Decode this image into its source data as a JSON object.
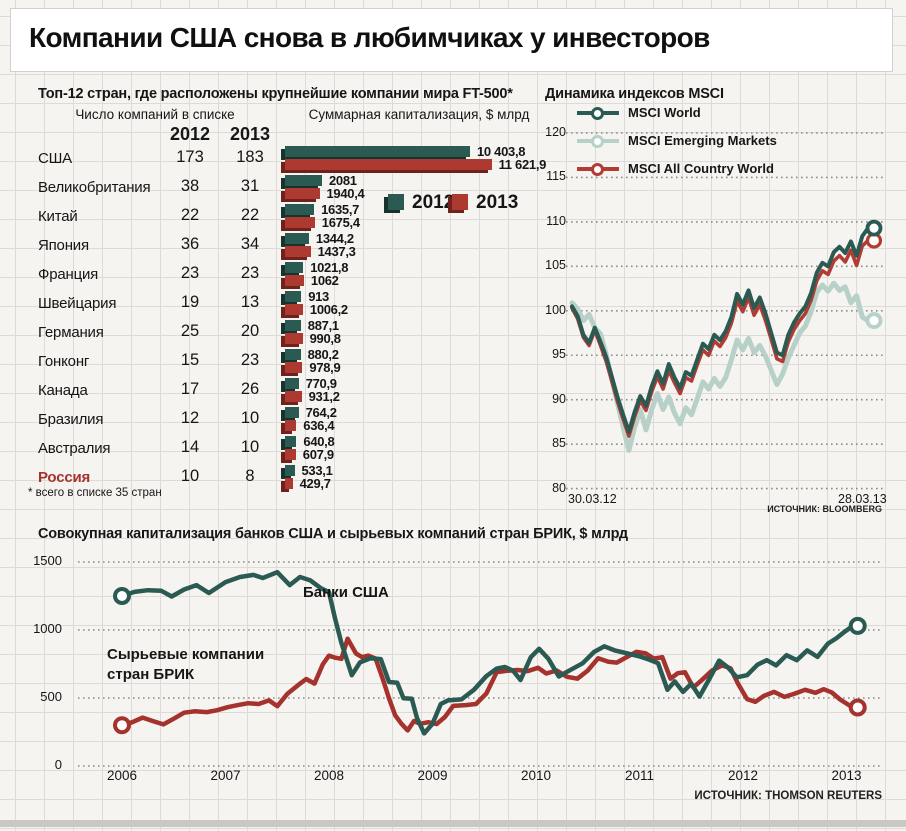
{
  "title": "Компании США снова в любимчиках у инвесторов",
  "table": {
    "subtitle": "Топ-12 стран, где расположены крупнейшие компании мира FT-500*",
    "count_header": "Число компаний в списке",
    "cap_header": "Суммарная капитализация, $ млрд",
    "years": [
      "2012",
      "2013"
    ],
    "legend": [
      "2012",
      "2013"
    ],
    "footnote": "* всего в списке 35 стран",
    "colors": {
      "y2012": "#2a5a52",
      "y2013": "#ad3a31",
      "highlight_text": "#a4342c"
    }
  },
  "msci": {
    "title": "Динамика индексов MSCI",
    "x_start": "30.03.12",
    "x_end": "28.03.13",
    "source": "ИСТОЧНИК: BLOOMBERG",
    "y_ticks": [
      120,
      115,
      110,
      105,
      100,
      95,
      90,
      85,
      80
    ]
  },
  "brik": {
    "title": "Совокупная капитализация банков США и сырьевых компаний стран БРИК, $ млрд",
    "label_banks": "Банки США",
    "label_brik_line1": "Сырьевые компании",
    "label_brik_line2": "стран БРИК",
    "source": "ИСТОЧНИК: THOMSON REUTERS",
    "y_ticks": [
      1500,
      1000,
      500,
      0
    ],
    "x_ticks": [
      2006,
      2007,
      2008,
      2009,
      2010,
      2011,
      2012,
      2013
    ]
  },
  "chart_data": [
    {
      "type": "bar",
      "title": "Топ-12 стран, где расположены крупнейшие компании мира FT-500*",
      "value_units": "$ млрд",
      "series_names": [
        "2012",
        "2013"
      ],
      "rows": [
        {
          "country": "США",
          "n2012": "173",
          "n2013": "183",
          "v2012": 10403.8,
          "v2013": 11621.9,
          "l2012": "10 403,8",
          "l2013": "11 621,9",
          "highlight": false
        },
        {
          "country": "Великобритания",
          "n2012": "38",
          "n2013": "31",
          "v2012": 2081,
          "v2013": 1940.4,
          "l2012": "2081",
          "l2013": "1940,4",
          "highlight": false
        },
        {
          "country": "Китай",
          "n2012": "22",
          "n2013": "22",
          "v2012": 1635.7,
          "v2013": 1675.4,
          "l2012": "1635,7",
          "l2013": "1675,4",
          "highlight": false
        },
        {
          "country": "Япония",
          "n2012": "36",
          "n2013": "34",
          "v2012": 1344.2,
          "v2013": 1437.3,
          "l2012": "1344,2",
          "l2013": "1437,3",
          "highlight": false
        },
        {
          "country": "Франция",
          "n2012": "23",
          "n2013": "23",
          "v2012": 1021.8,
          "v2013": 1062,
          "l2012": "1021,8",
          "l2013": "1062",
          "highlight": false
        },
        {
          "country": "Швейцария",
          "n2012": "19",
          "n2013": "13",
          "v2012": 913,
          "v2013": 1006.2,
          "l2012": "913",
          "l2013": "1006,2",
          "highlight": false
        },
        {
          "country": "Германия",
          "n2012": "25",
          "n2013": "20",
          "v2012": 887.1,
          "v2013": 990.8,
          "l2012": "887,1",
          "l2013": "990,8",
          "highlight": false
        },
        {
          "country": "Гонконг",
          "n2012": "15",
          "n2013": "23",
          "v2012": 880.2,
          "v2013": 978.9,
          "l2012": "880,2",
          "l2013": "978,9",
          "highlight": false
        },
        {
          "country": "Канада",
          "n2012": "17",
          "n2013": "26",
          "v2012": 770.9,
          "v2013": 931.2,
          "l2012": "770,9",
          "l2013": "931,2",
          "highlight": false
        },
        {
          "country": "Бразилия",
          "n2012": "12",
          "n2013": "10",
          "v2012": 764.2,
          "v2013": 636.4,
          "l2012": "764,2",
          "l2013": "636,4",
          "highlight": false
        },
        {
          "country": "Австралия",
          "n2012": "14",
          "n2013": "10",
          "v2012": 640.8,
          "v2013": 607.9,
          "l2012": "640,8",
          "l2013": "607,9",
          "highlight": false
        },
        {
          "country": "Россия",
          "n2012": "10",
          "n2013": "8",
          "v2012": 533.1,
          "v2013": 429.7,
          "l2012": "533,1",
          "l2013": "429,7",
          "highlight": true
        }
      ]
    },
    {
      "type": "line",
      "title": "Динамика индексов MSCI",
      "xlabel": "",
      "ylabel": "",
      "x_range": [
        "30.03.12",
        "28.03.13"
      ],
      "ylim": [
        80,
        120
      ],
      "grid": "dotted-horizontal",
      "legend_position": "top-left",
      "series": [
        {
          "name": "MSCI Emerging Markets",
          "color": "#b7d0c8",
          "width": 5,
          "values": [
            100.9,
            100.2,
            98.9,
            99.6,
            98.1,
            97.4,
            95.1,
            92.3,
            89.6,
            86.9,
            84.3,
            86.9,
            88.9,
            86.6,
            88.9,
            90.7,
            88.9,
            90.3,
            88.5,
            87.3,
            89.1,
            88.3,
            90.1,
            92.0,
            91.2,
            92.4,
            91.5,
            92.5,
            94.5,
            96.7,
            95.6,
            96.9,
            95.3,
            96.1,
            94.9,
            93.3,
            91.7,
            92.9,
            94.7,
            96.1,
            97.5,
            98.3,
            99.9,
            102.1,
            102.9,
            102.2,
            103.1,
            102.3,
            102.7,
            100.9,
            101.7,
            99.3,
            98.9
          ]
        },
        {
          "name": "MSCI All Country World",
          "color": "#b23b33",
          "width": 3.6,
          "values": [
            100.3,
            99.1,
            97.0,
            96.1,
            97.8,
            96.1,
            94.3,
            92.1,
            89.8,
            87.8,
            85.9,
            88.1,
            89.9,
            88.8,
            90.9,
            92.6,
            91.2,
            93.3,
            91.9,
            90.7,
            92.5,
            92.1,
            93.9,
            95.6,
            95.0,
            96.6,
            96.0,
            97.0,
            98.6,
            101.1,
            99.9,
            101.5,
            99.5,
            100.7,
            98.9,
            96.8,
            94.6,
            94.3,
            96.5,
            97.9,
            98.9,
            99.7,
            101.2,
            103.4,
            104.5,
            104.1,
            105.6,
            106.2,
            105.5,
            106.8,
            105.1,
            107.3,
            107.9
          ]
        },
        {
          "name": "MSCI World",
          "color": "#2a5a52",
          "width": 4,
          "values": [
            100.5,
            99.4,
            97.3,
            96.4,
            98.1,
            96.5,
            94.8,
            92.6,
            90.3,
            88.3,
            86.4,
            88.6,
            90.4,
            89.3,
            91.5,
            93.2,
            91.8,
            94.0,
            92.5,
            91.3,
            93.1,
            92.7,
            94.5,
            96.3,
            95.7,
            97.3,
            96.7,
            97.7,
            99.3,
            101.9,
            100.7,
            102.3,
            100.3,
            101.5,
            99.7,
            97.5,
            95.3,
            95.0,
            97.3,
            98.7,
            99.7,
            100.5,
            102.0,
            104.3,
            105.4,
            105.0,
            106.6,
            107.2,
            106.5,
            107.8,
            106.2,
            108.4,
            109.3
          ]
        }
      ],
      "legend_order": [
        "MSCI World",
        "MSCI Emerging Markets",
        "MSCI All Country World"
      ]
    },
    {
      "type": "line",
      "title": "Совокупная капитализация банков США и сырьевых компаний стран БРИК, $ млрд",
      "ylim": [
        0,
        1500
      ],
      "x_ticks": [
        2006,
        2007,
        2008,
        2009,
        2010,
        2011,
        2012,
        2013
      ],
      "grid": "dotted-horizontal",
      "series": [
        {
          "name": "Сырьевые компании стран БРИК",
          "color": "#a5322c",
          "width": 4.5,
          "points": [
            [
              2006.0,
              300
            ],
            [
              2006.1,
              322
            ],
            [
              2006.2,
              356
            ],
            [
              2006.3,
              330
            ],
            [
              2006.4,
              306
            ],
            [
              2006.5,
              348
            ],
            [
              2006.6,
              392
            ],
            [
              2006.7,
              402
            ],
            [
              2006.82,
              396
            ],
            [
              2006.92,
              410
            ],
            [
              2007.02,
              432
            ],
            [
              2007.12,
              448
            ],
            [
              2007.22,
              462
            ],
            [
              2007.32,
              456
            ],
            [
              2007.42,
              482
            ],
            [
              2007.5,
              440
            ],
            [
              2007.6,
              532
            ],
            [
              2007.7,
              594
            ],
            [
              2007.78,
              640
            ],
            [
              2007.86,
              606
            ],
            [
              2007.94,
              748
            ],
            [
              2008.0,
              812
            ],
            [
              2008.06,
              796
            ],
            [
              2008.12,
              788
            ],
            [
              2008.18,
              936
            ],
            [
              2008.26,
              828
            ],
            [
              2008.32,
              800
            ],
            [
              2008.38,
              812
            ],
            [
              2008.45,
              790
            ],
            [
              2008.52,
              640
            ],
            [
              2008.58,
              498
            ],
            [
              2008.64,
              372
            ],
            [
              2008.7,
              310
            ],
            [
              2008.76,
              262
            ],
            [
              2008.82,
              330
            ],
            [
              2008.88,
              310
            ],
            [
              2008.96,
              322
            ],
            [
              2009.04,
              308
            ],
            [
              2009.12,
              360
            ],
            [
              2009.2,
              442
            ],
            [
              2009.32,
              448
            ],
            [
              2009.42,
              456
            ],
            [
              2009.52,
              532
            ],
            [
              2009.62,
              690
            ],
            [
              2009.72,
              700
            ],
            [
              2009.82,
              706
            ],
            [
              2009.92,
              698
            ],
            [
              2010.02,
              722
            ],
            [
              2010.1,
              680
            ],
            [
              2010.2,
              702
            ],
            [
              2010.3,
              656
            ],
            [
              2010.4,
              642
            ],
            [
              2010.5,
              702
            ],
            [
              2010.6,
              792
            ],
            [
              2010.7,
              766
            ],
            [
              2010.78,
              760
            ],
            [
              2010.88,
              802
            ],
            [
              2010.97,
              840
            ],
            [
              2011.06,
              828
            ],
            [
              2011.14,
              790
            ],
            [
              2011.22,
              800
            ],
            [
              2011.3,
              642
            ],
            [
              2011.37,
              682
            ],
            [
              2011.44,
              690
            ],
            [
              2011.52,
              578
            ],
            [
              2011.6,
              630
            ],
            [
              2011.7,
              702
            ],
            [
              2011.8,
              740
            ],
            [
              2011.88,
              718
            ],
            [
              2011.95,
              608
            ],
            [
              2012.04,
              492
            ],
            [
              2012.12,
              472
            ],
            [
              2012.2,
              515
            ],
            [
              2012.3,
              545
            ],
            [
              2012.4,
              508
            ],
            [
              2012.5,
              532
            ],
            [
              2012.6,
              560
            ],
            [
              2012.7,
              538
            ],
            [
              2012.78,
              565
            ],
            [
              2012.86,
              540
            ],
            [
              2012.94,
              488
            ],
            [
              2013.06,
              430
            ]
          ]
        },
        {
          "name": "Банки США",
          "color": "#2a5a52",
          "width": 4.5,
          "points": [
            [
              2006.0,
              1250
            ],
            [
              2006.12,
              1280
            ],
            [
              2006.25,
              1293
            ],
            [
              2006.38,
              1288
            ],
            [
              2006.48,
              1246
            ],
            [
              2006.6,
              1298
            ],
            [
              2006.72,
              1330
            ],
            [
              2006.84,
              1272
            ],
            [
              2007.0,
              1352
            ],
            [
              2007.14,
              1390
            ],
            [
              2007.27,
              1405
            ],
            [
              2007.36,
              1382
            ],
            [
              2007.5,
              1425
            ],
            [
              2007.62,
              1330
            ],
            [
              2007.72,
              1390
            ],
            [
              2007.82,
              1365
            ],
            [
              2007.92,
              1308
            ],
            [
              2008.0,
              1278
            ],
            [
              2008.06,
              1080
            ],
            [
              2008.12,
              905
            ],
            [
              2008.22,
              668
            ],
            [
              2008.3,
              762
            ],
            [
              2008.4,
              792
            ],
            [
              2008.5,
              786
            ],
            [
              2008.58,
              618
            ],
            [
              2008.66,
              612
            ],
            [
              2008.72,
              498
            ],
            [
              2008.8,
              494
            ],
            [
              2008.85,
              352
            ],
            [
              2008.92,
              240
            ],
            [
              2009.0,
              310
            ],
            [
              2009.08,
              456
            ],
            [
              2009.15,
              482
            ],
            [
              2009.28,
              490
            ],
            [
              2009.4,
              560
            ],
            [
              2009.52,
              660
            ],
            [
              2009.62,
              716
            ],
            [
              2009.7,
              728
            ],
            [
              2009.78,
              700
            ],
            [
              2009.85,
              632
            ],
            [
              2009.95,
              800
            ],
            [
              2010.03,
              862
            ],
            [
              2010.12,
              788
            ],
            [
              2010.22,
              658
            ],
            [
              2010.33,
              705
            ],
            [
              2010.45,
              755
            ],
            [
              2010.56,
              838
            ],
            [
              2010.66,
              880
            ],
            [
              2010.76,
              850
            ],
            [
              2010.87,
              830
            ],
            [
              2011.0,
              806
            ],
            [
              2011.1,
              780
            ],
            [
              2011.18,
              756
            ],
            [
              2011.27,
              560
            ],
            [
              2011.34,
              622
            ],
            [
              2011.42,
              545
            ],
            [
              2011.5,
              605
            ],
            [
              2011.58,
              510
            ],
            [
              2011.68,
              648
            ],
            [
              2011.77,
              775
            ],
            [
              2011.85,
              728
            ],
            [
              2011.94,
              652
            ],
            [
              2012.04,
              668
            ],
            [
              2012.14,
              745
            ],
            [
              2012.23,
              778
            ],
            [
              2012.32,
              740
            ],
            [
              2012.42,
              815
            ],
            [
              2012.52,
              778
            ],
            [
              2012.62,
              850
            ],
            [
              2012.72,
              802
            ],
            [
              2012.82,
              900
            ],
            [
              2012.9,
              938
            ],
            [
              2012.98,
              986
            ],
            [
              2013.06,
              1030
            ]
          ]
        }
      ]
    }
  ]
}
